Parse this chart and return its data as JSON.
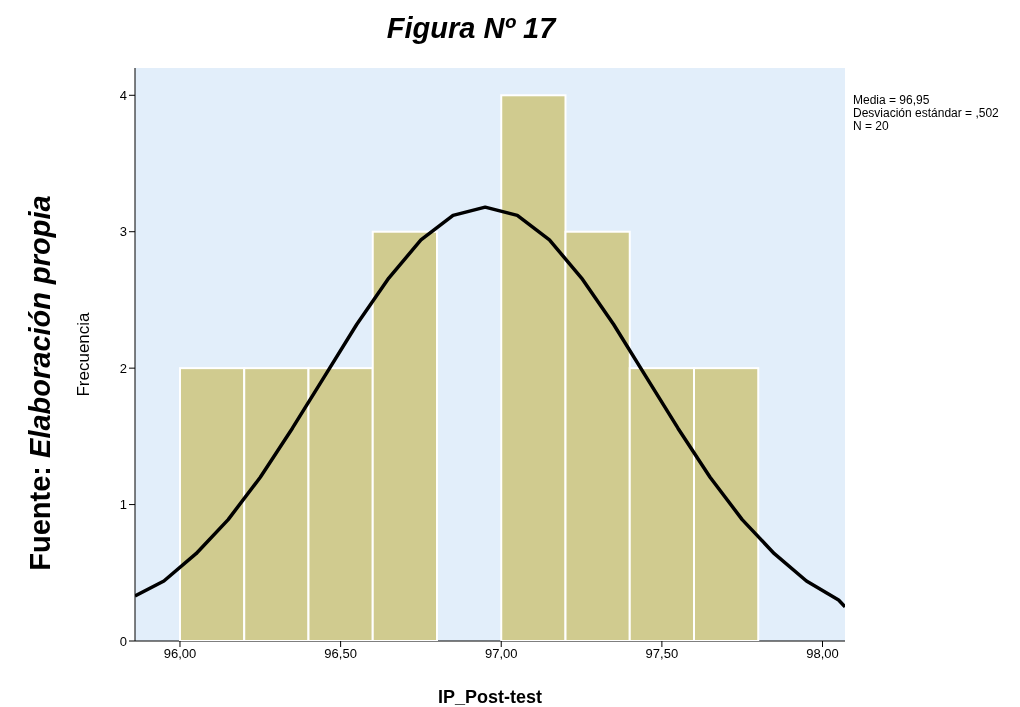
{
  "chart_data": {
    "type": "histogram",
    "title": "Figura Nº 17",
    "xlabel": "IP_Post-test",
    "ylabel": "Frecuencia",
    "bins": [
      96.0,
      96.2,
      96.4,
      96.6,
      96.8,
      97.0,
      97.2,
      97.4,
      97.6,
      97.8
    ],
    "values": [
      2,
      2,
      2,
      3,
      0,
      4,
      3,
      2,
      2
    ],
    "color": "#d0cb8f",
    "series": [
      {
        "type": "line",
        "color": "#000000",
        "x": [
          95.86,
          95.95,
          96.05,
          96.15,
          96.25,
          96.35,
          96.45,
          96.55,
          96.65,
          96.75,
          96.85,
          96.95,
          97.05,
          97.15,
          97.25,
          97.35,
          97.45,
          97.55,
          97.65,
          97.75,
          97.85,
          97.95,
          98.05,
          98.07
        ],
        "values": [
          0.33,
          0.44,
          0.64,
          0.89,
          1.2,
          1.56,
          1.94,
          2.32,
          2.66,
          2.94,
          3.12,
          3.18,
          3.12,
          2.94,
          2.66,
          2.32,
          1.94,
          1.56,
          1.2,
          0.89,
          0.64,
          0.44,
          0.3,
          0.25
        ]
      }
    ],
    "xlim": [
      95.86,
      98.07
    ],
    "xticks": [
      {
        "value": 96,
        "label": "96,00"
      },
      {
        "value": 96.5,
        "label": "96,50"
      },
      {
        "value": 97,
        "label": "97,00"
      },
      {
        "value": 97.5,
        "label": "97,50"
      },
      {
        "value": 98,
        "label": "98,00"
      }
    ],
    "ylim": [
      0,
      4.2
    ],
    "yticks": [
      0,
      1,
      2,
      3,
      4
    ],
    "annotations": [
      "Media = 96,95",
      "Desviación estándar = ,502",
      "N = 20",
      "Fuente: Elaboración propia"
    ]
  }
}
